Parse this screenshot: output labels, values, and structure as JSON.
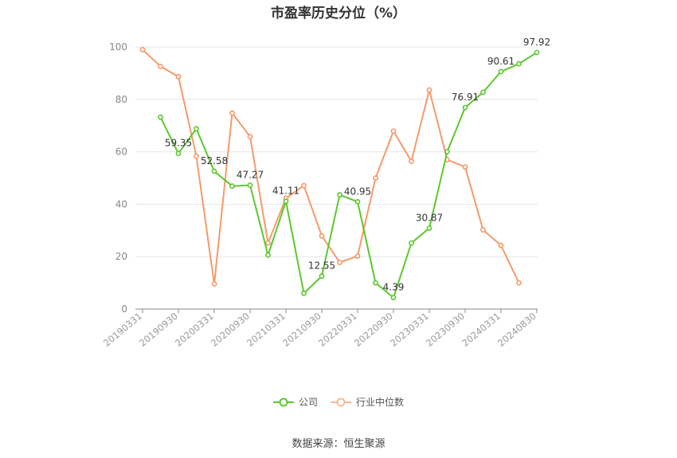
{
  "chart_data": {
    "type": "line",
    "title": "市盈率历史分位（%）",
    "ylim": [
      0,
      100
    ],
    "y_ticks": [
      0,
      20,
      40,
      60,
      80,
      100
    ],
    "grid": true,
    "legend_position": "bottom",
    "x_tick_labels": [
      "20190331",
      "20190930",
      "20200331",
      "20200930",
      "20210331",
      "20210930",
      "20220331",
      "20220930",
      "20230331",
      "20230930",
      "20240331",
      "20240830"
    ],
    "x_count": 23,
    "series": [
      {
        "name": "公司",
        "color": "#5cc72f",
        "values": [
          null,
          73.2,
          59.35,
          68.8,
          52.58,
          46.9,
          47.27,
          20.6,
          41.11,
          6.0,
          12.55,
          43.6,
          40.95,
          10.0,
          4.39,
          25.2,
          30.87,
          60.1,
          76.91,
          82.7,
          90.61,
          93.6,
          97.92
        ],
        "labels": {
          "2": "59.35",
          "4": "52.58",
          "6": "47.27",
          "8": "41.11",
          "10": "12.55",
          "12": "40.95",
          "14": "4.39",
          "16": "30.87",
          "18": "76.91",
          "20": "90.61",
          "22": "97.92"
        }
      },
      {
        "name": "行业中位数",
        "color": "#f59a6a",
        "values": [
          99.0,
          92.6,
          88.7,
          58.3,
          9.6,
          74.8,
          65.8,
          25.2,
          42.3,
          47.1,
          27.9,
          17.8,
          20.2,
          50.0,
          67.9,
          56.4,
          83.6,
          57.0,
          54.2,
          30.2,
          24.3,
          10.0,
          null
        ]
      }
    ]
  },
  "source_text": "数据来源：恒生聚源"
}
